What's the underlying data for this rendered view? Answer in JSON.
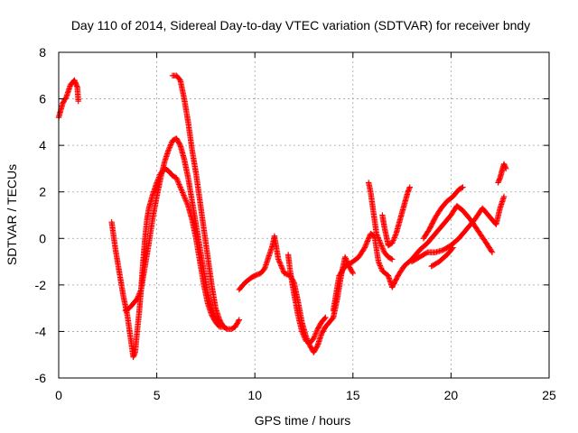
{
  "chart_data": {
    "type": "scatter",
    "title": "Day 110 of 2014, Sidereal Day-to-day VTEC variation (SDTVAR) for receiver bndy",
    "xlabel": "GPS time / hours",
    "ylabel": "SDTVAR / TECUs",
    "xlim": [
      0,
      25
    ],
    "ylim": [
      -6,
      8
    ],
    "x_ticks": [
      0,
      5,
      10,
      15,
      20,
      25
    ],
    "y_ticks": [
      -6,
      -4,
      -2,
      0,
      2,
      4,
      6,
      8
    ],
    "x_tick_labels": [
      "0",
      "5",
      "10",
      "15",
      "20",
      "25"
    ],
    "y_tick_labels": [
      "-6",
      "-4",
      "-2",
      "0",
      "2",
      "4",
      "6",
      "8"
    ],
    "grid": true,
    "marker": "+",
    "color": "#ff0000",
    "series": [
      {
        "values": [
          [
            0.0,
            5.2
          ],
          [
            0.2,
            5.8
          ],
          [
            0.4,
            6.1
          ],
          [
            0.6,
            6.6
          ],
          [
            0.8,
            6.8
          ],
          [
            0.95,
            6.5
          ],
          [
            1.0,
            5.9
          ]
        ]
      },
      {
        "values": [
          [
            2.7,
            0.7
          ],
          [
            2.9,
            -0.5
          ],
          [
            3.1,
            -1.5
          ],
          [
            3.3,
            -2.5
          ],
          [
            3.5,
            -3.3
          ],
          [
            3.7,
            -4.5
          ],
          [
            3.8,
            -5.1
          ],
          [
            3.9,
            -4.9
          ],
          [
            4.0,
            -4.0
          ],
          [
            4.1,
            -3.2
          ],
          [
            4.2,
            -2.2
          ],
          [
            4.3,
            -1.0
          ],
          [
            4.4,
            0.0
          ],
          [
            4.5,
            0.8
          ],
          [
            4.6,
            1.3
          ],
          [
            4.8,
            1.9
          ],
          [
            5.0,
            2.4
          ],
          [
            5.2,
            2.8
          ],
          [
            5.4,
            3.0
          ],
          [
            5.6,
            2.9
          ],
          [
            5.8,
            2.7
          ],
          [
            6.0,
            2.6
          ],
          [
            6.2,
            2.2
          ],
          [
            6.4,
            1.8
          ],
          [
            6.6,
            1.4
          ],
          [
            6.8,
            0.8
          ],
          [
            7.0,
            0.0
          ],
          [
            7.2,
            -1.0
          ],
          [
            7.4,
            -2.0
          ],
          [
            7.6,
            -2.8
          ],
          [
            7.8,
            -3.3
          ],
          [
            8.0,
            -3.6
          ],
          [
            8.2,
            -3.8
          ],
          [
            8.4,
            -3.8
          ],
          [
            8.6,
            -3.9
          ],
          [
            8.8,
            -3.9
          ],
          [
            9.0,
            -3.8
          ],
          [
            9.2,
            -3.5
          ]
        ]
      },
      {
        "values": [
          [
            3.4,
            -3.1
          ],
          [
            3.6,
            -3.0
          ],
          [
            3.8,
            -2.8
          ],
          [
            4.0,
            -2.6
          ],
          [
            4.2,
            -2.2
          ],
          [
            4.4,
            -1.2
          ],
          [
            4.6,
            -0.2
          ],
          [
            4.8,
            0.9
          ],
          [
            5.0,
            1.8
          ],
          [
            5.2,
            2.6
          ],
          [
            5.4,
            3.3
          ],
          [
            5.6,
            3.8
          ],
          [
            5.8,
            4.2
          ],
          [
            6.0,
            4.3
          ],
          [
            6.2,
            4.0
          ],
          [
            6.4,
            3.4
          ],
          [
            6.6,
            2.6
          ],
          [
            6.8,
            1.6
          ],
          [
            7.0,
            0.6
          ],
          [
            7.2,
            -0.4
          ],
          [
            7.4,
            -1.4
          ],
          [
            7.6,
            -2.4
          ],
          [
            7.8,
            -3.0
          ],
          [
            8.0,
            -3.4
          ],
          [
            8.2,
            -3.6
          ]
        ]
      },
      {
        "values": [
          [
            5.8,
            7.0
          ],
          [
            6.0,
            7.0
          ],
          [
            6.2,
            6.8
          ],
          [
            6.4,
            6.0
          ],
          [
            6.6,
            5.0
          ],
          [
            6.8,
            3.8
          ],
          [
            7.0,
            2.8
          ],
          [
            7.2,
            1.6
          ],
          [
            7.4,
            0.4
          ],
          [
            7.6,
            -0.8
          ],
          [
            7.8,
            -2.0
          ],
          [
            8.0,
            -3.0
          ],
          [
            8.2,
            -3.5
          ],
          [
            8.4,
            -3.8
          ]
        ]
      },
      {
        "values": [
          [
            9.2,
            -2.2
          ],
          [
            9.5,
            -1.9
          ],
          [
            9.8,
            -1.7
          ],
          [
            10.0,
            -1.6
          ],
          [
            10.3,
            -1.5
          ],
          [
            10.5,
            -1.3
          ],
          [
            10.7,
            -0.8
          ],
          [
            10.9,
            -0.3
          ],
          [
            11.0,
            0.1
          ],
          [
            11.2,
            -0.9
          ],
          [
            11.5,
            -1.5
          ],
          [
            11.8,
            -1.6
          ],
          [
            12.0,
            -1.9
          ],
          [
            12.2,
            -2.7
          ],
          [
            12.4,
            -3.6
          ],
          [
            12.6,
            -4.2
          ],
          [
            12.8,
            -4.6
          ],
          [
            13.0,
            -4.9
          ],
          [
            13.2,
            -4.6
          ],
          [
            13.4,
            -4.1
          ],
          [
            13.6,
            -3.8
          ],
          [
            13.8,
            -3.6
          ],
          [
            14.0,
            -3.4
          ],
          [
            14.2,
            -2.6
          ],
          [
            14.4,
            -1.6
          ],
          [
            14.6,
            -0.8
          ],
          [
            14.8,
            -1.2
          ],
          [
            15.0,
            -1.5
          ]
        ]
      },
      {
        "values": [
          [
            11.7,
            -0.7
          ],
          [
            11.8,
            -1.4
          ],
          [
            12.0,
            -2.4
          ],
          [
            12.2,
            -3.3
          ],
          [
            12.4,
            -4.0
          ],
          [
            12.6,
            -4.4
          ],
          [
            12.8,
            -4.5
          ],
          [
            13.0,
            -4.3
          ],
          [
            13.2,
            -3.9
          ],
          [
            13.4,
            -3.6
          ],
          [
            13.6,
            -3.4
          ]
        ]
      },
      {
        "values": [
          [
            14.0,
            -3.1
          ],
          [
            14.3,
            -1.6
          ],
          [
            14.6,
            -1.2
          ],
          [
            15.0,
            -1.0
          ],
          [
            15.3,
            -0.8
          ],
          [
            15.6,
            -0.4
          ],
          [
            15.9,
            0.2
          ],
          [
            16.1,
            0.1
          ],
          [
            16.3,
            -1.0
          ],
          [
            16.5,
            -1.4
          ],
          [
            16.8,
            -1.6
          ],
          [
            17.0,
            -2.1
          ],
          [
            17.3,
            -1.6
          ],
          [
            17.6,
            -1.2
          ],
          [
            18.0,
            -0.9
          ],
          [
            18.4,
            -0.5
          ],
          [
            18.8,
            -0.2
          ],
          [
            19.2,
            0.2
          ],
          [
            19.6,
            0.6
          ],
          [
            20.0,
            1.0
          ],
          [
            20.3,
            1.4
          ],
          [
            20.6,
            1.2
          ],
          [
            21.0,
            0.8
          ],
          [
            21.4,
            0.3
          ],
          [
            21.8,
            -0.2
          ],
          [
            22.1,
            -0.6
          ]
        ]
      },
      {
        "values": [
          [
            15.8,
            2.4
          ],
          [
            15.9,
            2.0
          ],
          [
            16.0,
            1.4
          ],
          [
            16.1,
            0.8
          ],
          [
            16.2,
            0.2
          ],
          [
            16.4,
            -0.2
          ],
          [
            16.6,
            -0.6
          ],
          [
            16.8,
            -0.8
          ],
          [
            17.0,
            -0.9
          ]
        ]
      },
      {
        "values": [
          [
            16.5,
            1.0
          ],
          [
            16.6,
            0.5
          ],
          [
            16.7,
            0.1
          ],
          [
            16.8,
            -0.3
          ],
          [
            17.0,
            -0.2
          ],
          [
            17.2,
            0.2
          ],
          [
            17.4,
            0.8
          ],
          [
            17.6,
            1.4
          ],
          [
            17.8,
            2.0
          ],
          [
            17.9,
            2.2
          ]
        ]
      },
      {
        "values": [
          [
            18.0,
            -1.0
          ],
          [
            18.4,
            -0.8
          ],
          [
            18.8,
            -0.6
          ],
          [
            19.2,
            -0.6
          ],
          [
            19.6,
            -0.5
          ],
          [
            20.0,
            -0.3
          ],
          [
            20.4,
            0.0
          ],
          [
            20.8,
            0.4
          ],
          [
            21.2,
            0.8
          ],
          [
            21.6,
            1.3
          ],
          [
            22.0,
            0.9
          ],
          [
            22.3,
            0.6
          ],
          [
            22.5,
            1.3
          ],
          [
            22.7,
            1.8
          ]
        ]
      },
      {
        "values": [
          [
            18.6,
            0.0
          ],
          [
            18.9,
            0.4
          ],
          [
            19.2,
            0.9
          ],
          [
            19.5,
            1.3
          ],
          [
            19.8,
            1.6
          ],
          [
            20.1,
            1.8
          ],
          [
            20.4,
            2.1
          ],
          [
            20.6,
            2.2
          ]
        ]
      },
      {
        "values": [
          [
            19.0,
            -1.2
          ],
          [
            19.4,
            -1.0
          ],
          [
            19.8,
            -0.7
          ],
          [
            20.1,
            -0.4
          ]
        ]
      },
      {
        "values": [
          [
            22.4,
            2.4
          ],
          [
            22.5,
            2.6
          ],
          [
            22.6,
            2.9
          ],
          [
            22.7,
            3.2
          ],
          [
            22.8,
            3.0
          ]
        ]
      }
    ]
  }
}
